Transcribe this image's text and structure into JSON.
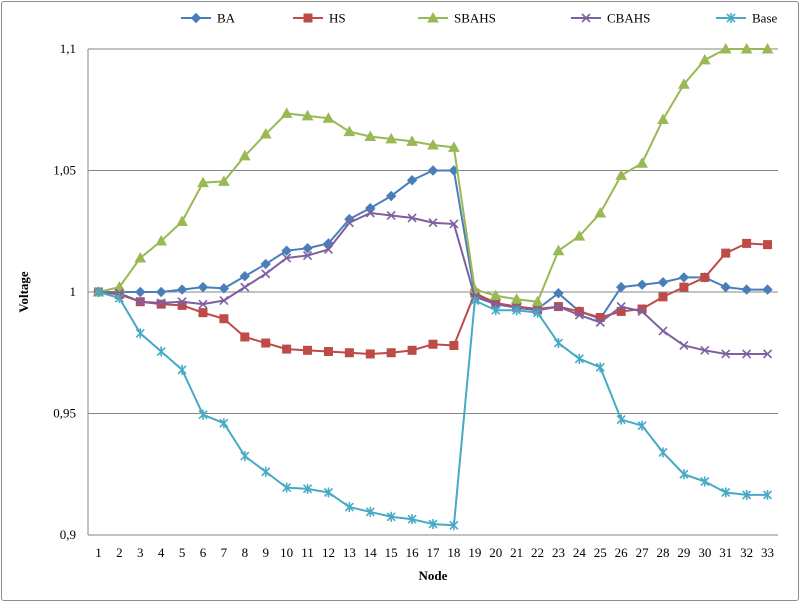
{
  "chart_data": {
    "type": "line",
    "title": "",
    "xlabel": "Node",
    "ylabel": "Voltage",
    "ylim": [
      0.9,
      1.1
    ],
    "yticks": [
      0.9,
      0.95,
      1.0,
      1.05,
      1.1
    ],
    "ytick_labels": [
      "0,9",
      "0,95",
      "1",
      "1,05",
      "1,1"
    ],
    "grid": "horizontal",
    "legend_position": "top",
    "categories": [
      "1",
      "2",
      "3",
      "4",
      "5",
      "6",
      "7",
      "8",
      "9",
      "10",
      "11",
      "12",
      "13",
      "14",
      "15",
      "16",
      "17",
      "18",
      "19",
      "20",
      "21",
      "22",
      "23",
      "24",
      "25",
      "26",
      "27",
      "28",
      "29",
      "30",
      "31",
      "32",
      "33"
    ],
    "series": [
      {
        "name": "BA",
        "color": "#4a7ebb",
        "marker": "diamond",
        "values": [
          1.0,
          1.0,
          1.0,
          1.0,
          1.001,
          1.002,
          1.0015,
          1.0065,
          1.0115,
          1.017,
          1.018,
          1.02,
          1.03,
          1.0345,
          1.0395,
          1.046,
          1.05,
          1.05,
          0.999,
          0.995,
          0.994,
          0.993,
          0.9995,
          0.992,
          0.989,
          1.002,
          1.003,
          1.004,
          1.006,
          1.006,
          1.002,
          1.001,
          1.001
        ]
      },
      {
        "name": "HS",
        "color": "#be4b48",
        "marker": "square",
        "values": [
          1.0,
          0.999,
          0.996,
          0.995,
          0.9945,
          0.9915,
          0.989,
          0.9815,
          0.979,
          0.9765,
          0.976,
          0.9755,
          0.975,
          0.9745,
          0.975,
          0.976,
          0.9785,
          0.978,
          0.9995,
          0.9955,
          0.994,
          0.993,
          0.994,
          0.992,
          0.9895,
          0.992,
          0.993,
          0.998,
          1.002,
          1.006,
          1.016,
          1.02,
          1.0195
        ]
      },
      {
        "name": "SBAHS",
        "color": "#98b954",
        "marker": "triangle",
        "values": [
          1.0,
          1.002,
          1.014,
          1.021,
          1.029,
          1.045,
          1.0455,
          1.056,
          1.065,
          1.0735,
          1.0725,
          1.0715,
          1.066,
          1.064,
          1.063,
          1.062,
          1.0605,
          1.0595,
          1.001,
          0.9985,
          0.997,
          0.996,
          1.017,
          1.023,
          1.0325,
          1.048,
          1.053,
          1.071,
          1.0855,
          1.0955,
          1.1,
          1.1,
          1.1
        ]
      },
      {
        "name": "CBAHS",
        "color": "#7d60a0",
        "marker": "x",
        "values": [
          1.0,
          0.9995,
          0.996,
          0.9955,
          0.996,
          0.995,
          0.9965,
          1.002,
          1.0075,
          1.014,
          1.015,
          1.0175,
          1.0285,
          1.0325,
          1.0315,
          1.0305,
          1.0285,
          1.028,
          0.998,
          0.995,
          0.9935,
          0.9925,
          0.994,
          0.9905,
          0.9875,
          0.994,
          0.992,
          0.984,
          0.978,
          0.976,
          0.9745,
          0.9745,
          0.9745
        ]
      },
      {
        "name": "Base",
        "color": "#46aac5",
        "marker": "star",
        "values": [
          1.0,
          0.9975,
          0.983,
          0.9755,
          0.968,
          0.9495,
          0.946,
          0.9325,
          0.926,
          0.9195,
          0.919,
          0.9175,
          0.9115,
          0.9095,
          0.9075,
          0.9065,
          0.9045,
          0.904,
          0.9965,
          0.9925,
          0.9925,
          0.9915,
          0.979,
          0.9725,
          0.969,
          0.9475,
          0.945,
          0.934,
          0.925,
          0.922,
          0.9175,
          0.9165,
          0.9165
        ]
      }
    ]
  }
}
